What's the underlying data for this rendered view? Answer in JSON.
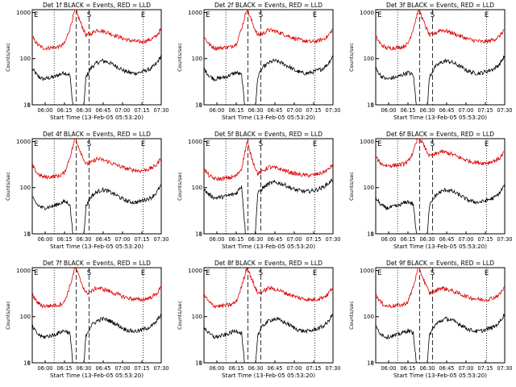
{
  "chart_data": [
    {
      "type": "line",
      "title": "Det 1f BLACK = Events, RED = LLD",
      "xlabel": "Start Time (13-Feb-05 05:53:20)",
      "ylabel": "Counts/sec",
      "yscale": "log",
      "ylim": [
        1,
        1000
      ],
      "y_ticks": [
        "1",
        "10",
        "100",
        "1000"
      ],
      "x_ticks": [
        "06:00",
        "06:15",
        "06:30",
        "06:45",
        "07:00",
        "07:15",
        "07:30"
      ],
      "markers": [
        "E",
        "S",
        "E"
      ],
      "series": [
        {
          "name": "Events",
          "color": "#000000",
          "values": [
            60,
            42,
            36,
            38,
            40,
            45,
            50,
            44,
            3,
            1,
            40,
            65,
            80,
            90,
            85,
            75,
            65,
            55,
            50,
            48,
            50,
            55,
            60,
            75,
            115
          ]
        },
        {
          "name": "LLD",
          "color": "#dd0000",
          "values": [
            300,
            200,
            170,
            170,
            175,
            180,
            210,
            450,
            1200,
            600,
            320,
            350,
            420,
            400,
            370,
            330,
            300,
            270,
            250,
            240,
            230,
            240,
            260,
            300,
            440
          ]
        }
      ]
    },
    {
      "type": "line",
      "title": "Det 2f BLACK = Events, RED = LLD",
      "xlabel": "Start Time (13-Feb-05 05:53:20)",
      "ylabel": "Counts/sec",
      "yscale": "log",
      "ylim": [
        1,
        1000
      ],
      "y_ticks": [
        "1",
        "10",
        "100",
        "1000"
      ],
      "x_ticks": [
        "06:00",
        "06:15",
        "06:30",
        "06:45",
        "07:00",
        "07:15",
        "07:30"
      ],
      "markers": [
        "E",
        "S",
        "E"
      ],
      "series": [
        {
          "name": "Events",
          "color": "#000000",
          "values": [
            60,
            42,
            36,
            38,
            40,
            45,
            50,
            44,
            3,
            1,
            40,
            65,
            80,
            90,
            85,
            75,
            65,
            55,
            50,
            48,
            50,
            55,
            60,
            75,
            115
          ]
        },
        {
          "name": "LLD",
          "color": "#dd0000",
          "values": [
            300,
            200,
            170,
            170,
            175,
            180,
            210,
            450,
            1200,
            600,
            320,
            350,
            420,
            400,
            370,
            330,
            300,
            270,
            250,
            240,
            230,
            240,
            260,
            300,
            440
          ]
        }
      ]
    },
    {
      "type": "line",
      "title": "Det 3f BLACK = Events, RED = LLD",
      "xlabel": "Start Time (13-Feb-05 05:53:20)",
      "ylabel": "Counts/sec",
      "yscale": "log",
      "ylim": [
        1,
        1000
      ],
      "y_ticks": [
        "1",
        "10",
        "100",
        "1000"
      ],
      "x_ticks": [
        "06:00",
        "06:15",
        "06:30",
        "06:45",
        "07:00",
        "07:15",
        "07:30"
      ],
      "markers": [
        "E",
        "S",
        "E"
      ],
      "series": [
        {
          "name": "Events",
          "color": "#000000",
          "values": [
            60,
            42,
            36,
            38,
            40,
            45,
            50,
            44,
            3,
            1,
            40,
            65,
            80,
            90,
            85,
            75,
            65,
            55,
            50,
            48,
            50,
            55,
            60,
            75,
            115
          ]
        },
        {
          "name": "LLD",
          "color": "#dd0000",
          "values": [
            300,
            200,
            170,
            170,
            175,
            180,
            210,
            450,
            1200,
            600,
            320,
            350,
            420,
            400,
            370,
            330,
            300,
            270,
            250,
            240,
            230,
            240,
            260,
            300,
            440
          ]
        }
      ]
    },
    {
      "type": "line",
      "title": "Det 4f BLACK = Events, RED = LLD",
      "xlabel": "Start Time (13-Feb-05 05:53:20)",
      "ylabel": "Counts/sec",
      "yscale": "log",
      "ylim": [
        1,
        1000
      ],
      "y_ticks": [
        "1",
        "10",
        "100",
        "1000"
      ],
      "x_ticks": [
        "06:00",
        "06:15",
        "06:30",
        "06:45",
        "07:00",
        "07:15",
        "07:30"
      ],
      "markers": [
        "E",
        "S",
        "E"
      ],
      "series": [
        {
          "name": "Events",
          "color": "#000000",
          "values": [
            60,
            42,
            36,
            38,
            40,
            45,
            50,
            44,
            3,
            1,
            40,
            65,
            80,
            90,
            85,
            75,
            65,
            55,
            50,
            48,
            50,
            55,
            60,
            75,
            115
          ]
        },
        {
          "name": "LLD",
          "color": "#dd0000",
          "values": [
            300,
            200,
            170,
            170,
            175,
            180,
            210,
            450,
            1200,
            600,
            320,
            350,
            420,
            400,
            370,
            330,
            300,
            270,
            250,
            240,
            230,
            240,
            260,
            300,
            440
          ]
        }
      ]
    },
    {
      "type": "line",
      "title": "Det 5f BLACK = Events, RED = LLD",
      "xlabel": "Start Time (13-Feb-05 05:53:20)",
      "ylabel": "Counts/sec",
      "yscale": "log",
      "ylim": [
        1,
        1000
      ],
      "y_ticks": [
        "1",
        "10",
        "100",
        "1000"
      ],
      "x_ticks": [
        "06:00",
        "06:15",
        "06:30",
        "06:45",
        "07:00",
        "07:15",
        "07:30"
      ],
      "markers": [
        "E",
        "S",
        "E"
      ],
      "series": [
        {
          "name": "Events",
          "color": "#000000",
          "values": [
            90,
            70,
            60,
            62,
            65,
            70,
            75,
            110,
            4,
            1,
            75,
            100,
            120,
            130,
            125,
            115,
            100,
            90,
            85,
            82,
            85,
            90,
            100,
            120,
            150
          ]
        },
        {
          "name": "LLD",
          "color": "#dd0000",
          "values": [
            250,
            180,
            155,
            155,
            160,
            165,
            180,
            260,
            1000,
            400,
            200,
            230,
            280,
            270,
            255,
            235,
            215,
            200,
            190,
            185,
            185,
            195,
            210,
            240,
            320
          ]
        }
      ]
    },
    {
      "type": "line",
      "title": "Det 6f BLACK = Events, RED = LLD",
      "xlabel": "Start Time (13-Feb-05 05:53:20)",
      "ylabel": "Counts/sec",
      "yscale": "log",
      "ylim": [
        1,
        1000
      ],
      "y_ticks": [
        "1",
        "10",
        "100",
        "1000"
      ],
      "x_ticks": [
        "06:00",
        "06:15",
        "06:30",
        "06:45",
        "07:00",
        "07:15",
        "07:30"
      ],
      "markers": [
        "E",
        "S",
        "E"
      ],
      "series": [
        {
          "name": "Events",
          "color": "#000000",
          "values": [
            60,
            42,
            36,
            38,
            40,
            45,
            50,
            44,
            3,
            1,
            40,
            65,
            80,
            90,
            85,
            75,
            65,
            55,
            50,
            48,
            50,
            55,
            60,
            75,
            115
          ]
        },
        {
          "name": "LLD",
          "color": "#dd0000",
          "values": [
            450,
            330,
            300,
            300,
            310,
            320,
            360,
            600,
            1300,
            800,
            480,
            520,
            600,
            580,
            540,
            480,
            430,
            390,
            360,
            350,
            340,
            350,
            380,
            430,
            600
          ]
        }
      ]
    },
    {
      "type": "line",
      "title": "Det 7f BLACK = Events, RED = LLD",
      "xlabel": "Start Time (13-Feb-05 05:53:20)",
      "ylabel": "Counts/sec",
      "yscale": "log",
      "ylim": [
        1,
        1000
      ],
      "y_ticks": [
        "1",
        "10",
        "100",
        "1000"
      ],
      "x_ticks": [
        "06:00",
        "06:15",
        "06:30",
        "06:45",
        "07:00",
        "07:15",
        "07:30"
      ],
      "markers": [
        "E",
        "S",
        "E"
      ],
      "series": [
        {
          "name": "Events",
          "color": "#000000",
          "values": [
            60,
            42,
            36,
            38,
            40,
            45,
            50,
            44,
            3,
            1,
            40,
            65,
            80,
            90,
            85,
            75,
            65,
            55,
            50,
            48,
            50,
            55,
            60,
            75,
            115
          ]
        },
        {
          "name": "LLD",
          "color": "#dd0000",
          "values": [
            300,
            200,
            170,
            170,
            175,
            180,
            210,
            450,
            1200,
            600,
            320,
            350,
            420,
            400,
            370,
            330,
            300,
            270,
            250,
            240,
            230,
            240,
            260,
            300,
            440
          ]
        }
      ]
    },
    {
      "type": "line",
      "title": "Det 8f BLACK = Events, RED = LLD",
      "xlabel": "Start Time (13-Feb-05 05:53:20)",
      "ylabel": "Counts/sec",
      "yscale": "log",
      "ylim": [
        1,
        1000
      ],
      "y_ticks": [
        "1",
        "10",
        "100",
        "1000"
      ],
      "x_ticks": [
        "06:00",
        "06:15",
        "06:30",
        "06:45",
        "07:00",
        "07:15",
        "07:30"
      ],
      "markers": [
        "E",
        "S",
        "E"
      ],
      "series": [
        {
          "name": "Events",
          "color": "#000000",
          "values": [
            60,
            42,
            36,
            38,
            40,
            45,
            50,
            44,
            3,
            1,
            40,
            65,
            80,
            90,
            85,
            75,
            65,
            55,
            50,
            48,
            50,
            55,
            60,
            75,
            115
          ]
        },
        {
          "name": "LLD",
          "color": "#dd0000",
          "values": [
            300,
            200,
            170,
            170,
            175,
            180,
            210,
            450,
            1200,
            600,
            320,
            350,
            420,
            400,
            370,
            330,
            300,
            270,
            250,
            240,
            230,
            240,
            260,
            300,
            440
          ]
        }
      ]
    },
    {
      "type": "line",
      "title": "Det 9f BLACK = Events, RED = LLD",
      "xlabel": "Start Time (13-Feb-05 05:53:20)",
      "ylabel": "Counts/sec",
      "yscale": "log",
      "ylim": [
        1,
        1000
      ],
      "y_ticks": [
        "1",
        "10",
        "100",
        "1000"
      ],
      "x_ticks": [
        "06:00",
        "06:15",
        "06:30",
        "06:45",
        "07:00",
        "07:15",
        "07:30"
      ],
      "markers": [
        "E",
        "S",
        "E"
      ],
      "series": [
        {
          "name": "Events",
          "color": "#000000",
          "values": [
            60,
            42,
            36,
            38,
            40,
            45,
            50,
            44,
            3,
            1,
            40,
            65,
            80,
            90,
            85,
            75,
            65,
            55,
            50,
            48,
            50,
            55,
            60,
            75,
            115
          ]
        },
        {
          "name": "LLD",
          "color": "#dd0000",
          "values": [
            300,
            200,
            170,
            170,
            175,
            180,
            210,
            450,
            1200,
            600,
            320,
            350,
            420,
            400,
            370,
            330,
            300,
            270,
            250,
            240,
            230,
            240,
            260,
            300,
            440
          ]
        }
      ]
    }
  ]
}
